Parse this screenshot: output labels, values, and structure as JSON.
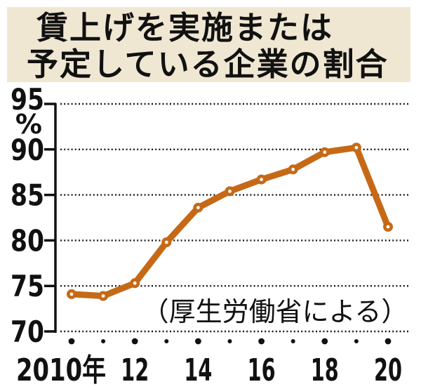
{
  "title": {
    "line1": "賃上げを実施または",
    "line2": "予定している企業の割合"
  },
  "source_label": "（厚生労働省による）",
  "y_axis": {
    "unit": "%",
    "ticks": [
      95,
      90,
      85,
      80,
      75,
      70
    ]
  },
  "x_axis": {
    "labels": [
      "2010年",
      "12",
      "14",
      "16",
      "18",
      "20"
    ]
  },
  "colors": {
    "line": "#c66916",
    "marker_center": "#ffffff",
    "title_bg": "#f0e7d3",
    "text": "#111111",
    "grid": "#1a1a1a"
  },
  "chart_data": {
    "type": "line",
    "title": "賃上げを実施または予定している企業の割合",
    "source": "（厚生労働省による）",
    "x": [
      2010,
      2011,
      2012,
      2013,
      2014,
      2015,
      2016,
      2017,
      2018,
      2019,
      2020
    ],
    "x_tick_labels": [
      "2010年",
      "12",
      "14",
      "16",
      "18",
      "20"
    ],
    "values": [
      74.1,
      73.9,
      75.3,
      79.8,
      83.6,
      85.4,
      86.7,
      87.8,
      89.7,
      90.2,
      81.5
    ],
    "ylabel": "%",
    "ylim": [
      70,
      95
    ],
    "y_ticks": [
      95,
      90,
      85,
      80,
      75,
      70
    ],
    "grid": "horizontal-dotted",
    "legend": "none",
    "line_color": "#c66916",
    "marker": "circle-white-center"
  }
}
